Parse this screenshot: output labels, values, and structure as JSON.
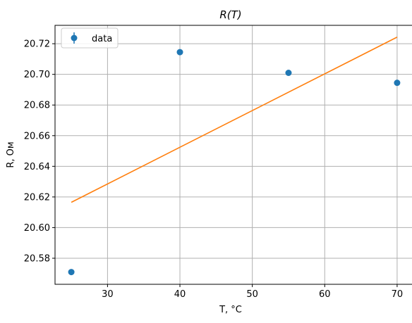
{
  "chart_data": {
    "type": "scatter",
    "title": "R(T)",
    "xlabel": "T, °C",
    "ylabel": "R, Ом",
    "xlim": [
      22.75,
      72.25
    ],
    "ylim": [
      20.563,
      20.732
    ],
    "xticks": [
      30,
      40,
      50,
      60,
      70
    ],
    "yticks": [
      20.58,
      20.6,
      20.62,
      20.64,
      20.66,
      20.68,
      20.7,
      20.72
    ],
    "xtick_labels": [
      "30",
      "40",
      "50",
      "60",
      "70"
    ],
    "ytick_labels": [
      "20.58",
      "20.60",
      "20.62",
      "20.64",
      "20.66",
      "20.68",
      "20.70",
      "20.72"
    ],
    "grid": true,
    "legend_position": "top-left",
    "series": [
      {
        "name": "data",
        "kind": "errorbar-points",
        "color": "#1f77b4",
        "x": [
          25,
          40,
          55,
          70
        ],
        "y": [
          20.571,
          20.7145,
          20.701,
          20.6945
        ]
      },
      {
        "kind": "line",
        "color": "#ff7f0e",
        "x": [
          25,
          70
        ],
        "y": [
          20.6165,
          20.7243
        ]
      }
    ]
  }
}
